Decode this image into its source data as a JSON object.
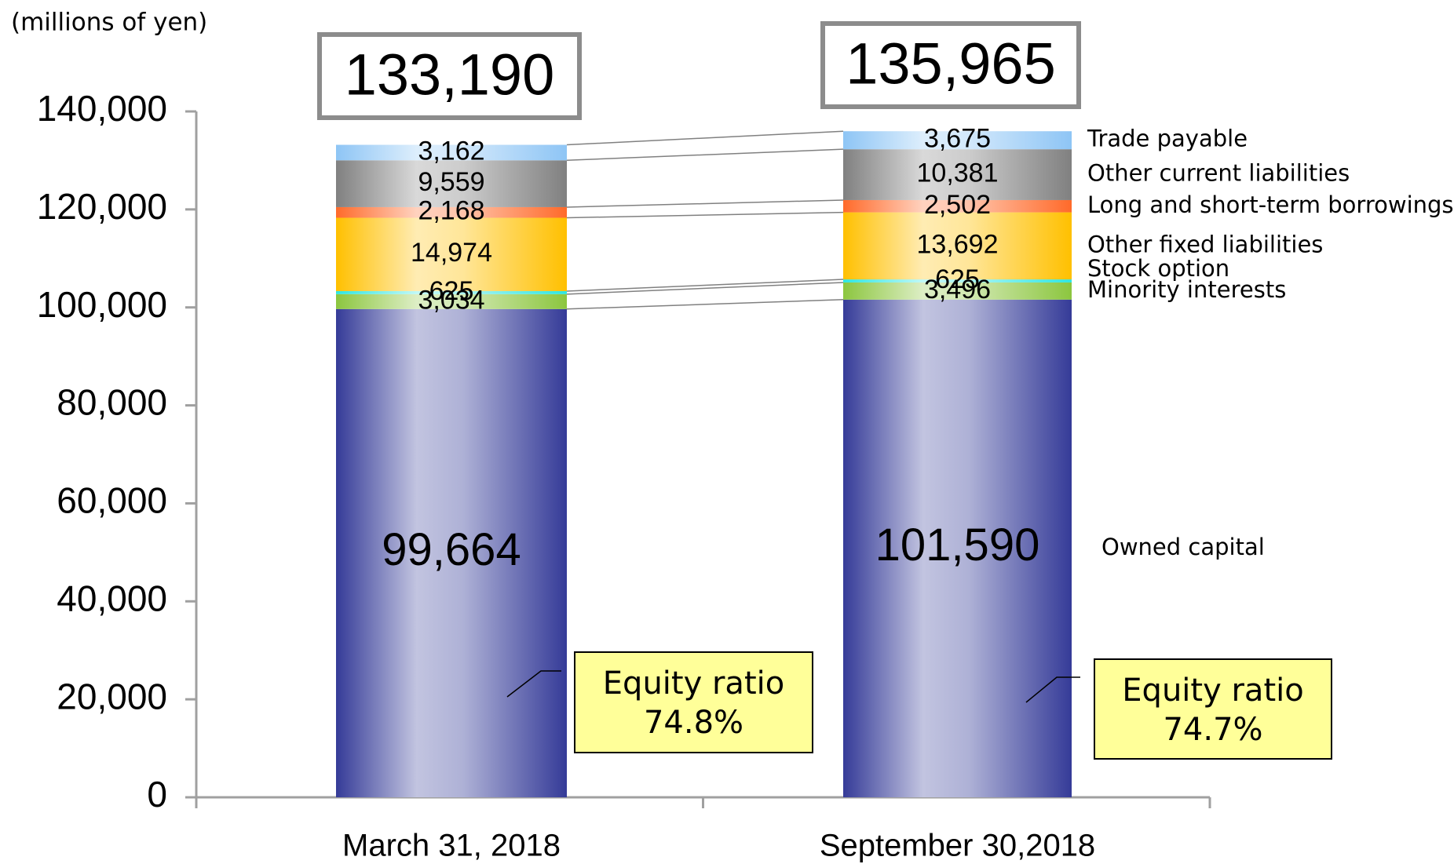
{
  "chart_data": {
    "type": "stacked_bar",
    "subtitle": "(millions of yen)",
    "categories": [
      "March 31, 2018",
      "September 30,2018"
    ],
    "ylim": [
      0,
      140000
    ],
    "yticks": [
      0,
      {
        "value": 20000,
        "label": "20,000"
      },
      {
        "value": 40000,
        "label": "40,000"
      },
      {
        "value": 60000,
        "label": "60,000"
      },
      {
        "value": 80000,
        "label": "80,000"
      },
      {
        "value": 100000,
        "label": "100,000"
      },
      {
        "value": 120000,
        "label": "120,000"
      },
      {
        "value": 140000,
        "label": "140,000"
      }
    ],
    "series": [
      {
        "name": "Owned capital",
        "color": "#353b98",
        "values": [
          99664,
          101590
        ],
        "value_labels": [
          "99,664",
          "101,590"
        ]
      },
      {
        "name": "Minority interests",
        "color": "#8cc63f",
        "values": [
          3034,
          3496
        ],
        "value_labels": [
          "3,034",
          "3,496"
        ]
      },
      {
        "name": "Stock option",
        "color": "#2ee6e0",
        "values": [
          625,
          625
        ],
        "value_labels": [
          "625",
          "625"
        ]
      },
      {
        "name": "Other fixed liabilities",
        "color": "#ffc000",
        "values": [
          14974,
          13692
        ],
        "value_labels": [
          "14,974",
          "13,692"
        ]
      },
      {
        "name": "Long and short-term borrowings",
        "color": "#ff6a2a",
        "values": [
          2168,
          2502
        ],
        "value_labels": [
          "2,168",
          "2,502"
        ]
      },
      {
        "name": "Other current liabilities",
        "color": "#808080",
        "values": [
          9559,
          10381
        ],
        "value_labels": [
          "9,559",
          "10,381"
        ]
      },
      {
        "name": "Trade payable",
        "color": "#8ec5f5",
        "values": [
          3162,
          3675
        ],
        "value_labels": [
          "3,162",
          "3,675"
        ]
      }
    ],
    "totals": [
      133190,
      135965
    ],
    "total_labels": [
      "133,190",
      "135,965"
    ],
    "equity_ratios": [
      {
        "label": "Equity ratio",
        "value_label": "74.8%"
      },
      {
        "label": "Equity ratio",
        "value_label": "74.7%"
      }
    ]
  }
}
